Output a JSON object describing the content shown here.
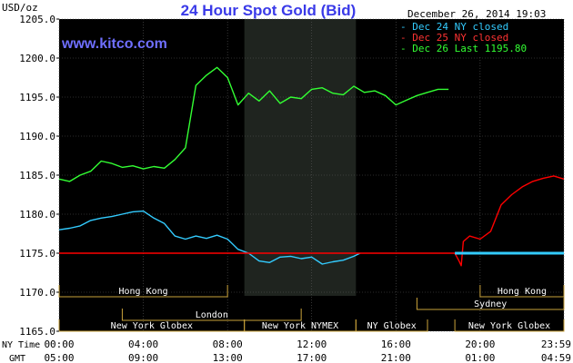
{
  "chart_data": {
    "type": "line",
    "title": "24 Hour Spot Gold (Bid)",
    "watermark": "www.kitco.com",
    "timestamp": "December 26, 2014 19:03",
    "ylabel": "USD/oz",
    "ylim": [
      1165,
      1205
    ],
    "y_ticks": [
      "1205.0",
      "1200.0",
      "1195.0",
      "1190.0",
      "1185.0",
      "1180.0",
      "1175.0",
      "1170.0",
      "1165.0"
    ],
    "x_row_labels": [
      "NY Time",
      "GMT"
    ],
    "ny_ticks": [
      "00:00",
      "04:00",
      "08:00",
      "12:00",
      "16:00",
      "20:00",
      "23:59"
    ],
    "gmt_ticks": [
      "05:00",
      "09:00",
      "13:00",
      "17:00",
      "21:00",
      "01:00",
      "04:59"
    ],
    "grid": true,
    "legend_position": "top-right",
    "colors": {
      "background": "#000000",
      "title": "#3a3ae8",
      "watermark": "#6f6fff",
      "session_shade": "#1f241f",
      "grid": "#5a5a5a",
      "axis_text": "#000000",
      "market_box": "#ffe89a",
      "market_border": "#c9a23a",
      "market_text": "#ffffff"
    },
    "series": [
      {
        "name": "Dec 24 NY closed",
        "color": "#33ccff",
        "x": [
          0,
          0.5,
          1,
          1.5,
          2,
          2.5,
          3,
          3.5,
          4,
          4.5,
          5,
          5.5,
          6,
          6.5,
          7,
          7.5,
          8,
          8.5,
          9,
          9.5,
          10,
          10.5,
          11,
          11.5,
          12,
          12.5,
          13,
          13.5,
          14,
          14.3
        ],
        "values": [
          1178.0,
          1178.2,
          1178.5,
          1179.2,
          1179.5,
          1179.7,
          1180.0,
          1180.3,
          1180.4,
          1179.5,
          1178.8,
          1177.2,
          1176.8,
          1177.2,
          1176.9,
          1177.3,
          1176.8,
          1175.5,
          1175.0,
          1174.0,
          1173.8,
          1174.5,
          1174.6,
          1174.3,
          1174.5,
          1173.6,
          1173.9,
          1174.1,
          1174.6,
          1175.0
        ]
      },
      {
        "name": "Dec 25 NY closed",
        "color": "#ff0000",
        "x": [
          0,
          16.5,
          18.8,
          19.0,
          19.1,
          19.2,
          19.5,
          20,
          20.5,
          21,
          21.5,
          22,
          22.5,
          23,
          23.5,
          23.98
        ],
        "values": [
          1175.0,
          1175.0,
          1175.0,
          1174.0,
          1173.4,
          1176.5,
          1177.2,
          1176.8,
          1177.8,
          1181.2,
          1182.5,
          1183.5,
          1184.2,
          1184.6,
          1184.9,
          1184.5
        ]
      },
      {
        "name": "Dec 26 Last 1195.80",
        "color": "#33ff33",
        "x": [
          0,
          0.5,
          1,
          1.5,
          2,
          2.5,
          3,
          3.5,
          4,
          4.5,
          5,
          5.5,
          6,
          6.5,
          7,
          7.5,
          8,
          8.5,
          9,
          9.5,
          10,
          10.5,
          11,
          11.5,
          12,
          12.5,
          13,
          13.5,
          14,
          14.5,
          15,
          15.5,
          16,
          16.5,
          17,
          17.5,
          18,
          18.5
        ],
        "values": [
          1184.5,
          1184.2,
          1185.0,
          1185.5,
          1186.8,
          1186.5,
          1186.0,
          1186.2,
          1185.8,
          1186.1,
          1185.9,
          1187.0,
          1188.5,
          1196.5,
          1197.8,
          1198.8,
          1197.5,
          1194.0,
          1195.5,
          1194.5,
          1195.8,
          1194.2,
          1195.0,
          1194.8,
          1196.0,
          1196.2,
          1195.5,
          1195.3,
          1196.4,
          1195.6,
          1195.8,
          1195.2,
          1194.0,
          1194.6,
          1195.2,
          1195.6,
          1196.0,
          1196.0
        ]
      },
      {
        "name": "Dec 24 close level",
        "color": "#33ccff",
        "x": [
          18.8,
          23.98
        ],
        "values": [
          1175.0,
          1175.0
        ]
      }
    ],
    "legend": [
      {
        "label": "Dec 24 NY closed",
        "color": "#33ccff"
      },
      {
        "label": "Dec 25 NY closed",
        "color": "#ff3333"
      },
      {
        "label": "Dec 26 Last 1195.80",
        "color": "#33ff33"
      }
    ],
    "markets": [
      {
        "label": "Hong Kong",
        "row": 0,
        "start": 0,
        "end": 8
      },
      {
        "label": "Hong Kong",
        "row": 0,
        "start": 20,
        "end": 23.98
      },
      {
        "label": "Sydney",
        "row": 1,
        "start": 17,
        "end": 23.98
      },
      {
        "label": "London",
        "row": 2,
        "start": 3,
        "end": 11.5
      },
      {
        "label": "New York Globex",
        "row": 3,
        "start": 0,
        "end": 8.8
      },
      {
        "label": "New York NYMEX",
        "row": 3,
        "start": 8.8,
        "end": 14.1
      },
      {
        "label": "NY Globex",
        "row": 3,
        "start": 14.1,
        "end": 17.5
      },
      {
        "label": "New York Globex",
        "row": 3,
        "start": 18.8,
        "end": 23.98
      }
    ],
    "session_shade_range": [
      8.8,
      14.1
    ]
  }
}
